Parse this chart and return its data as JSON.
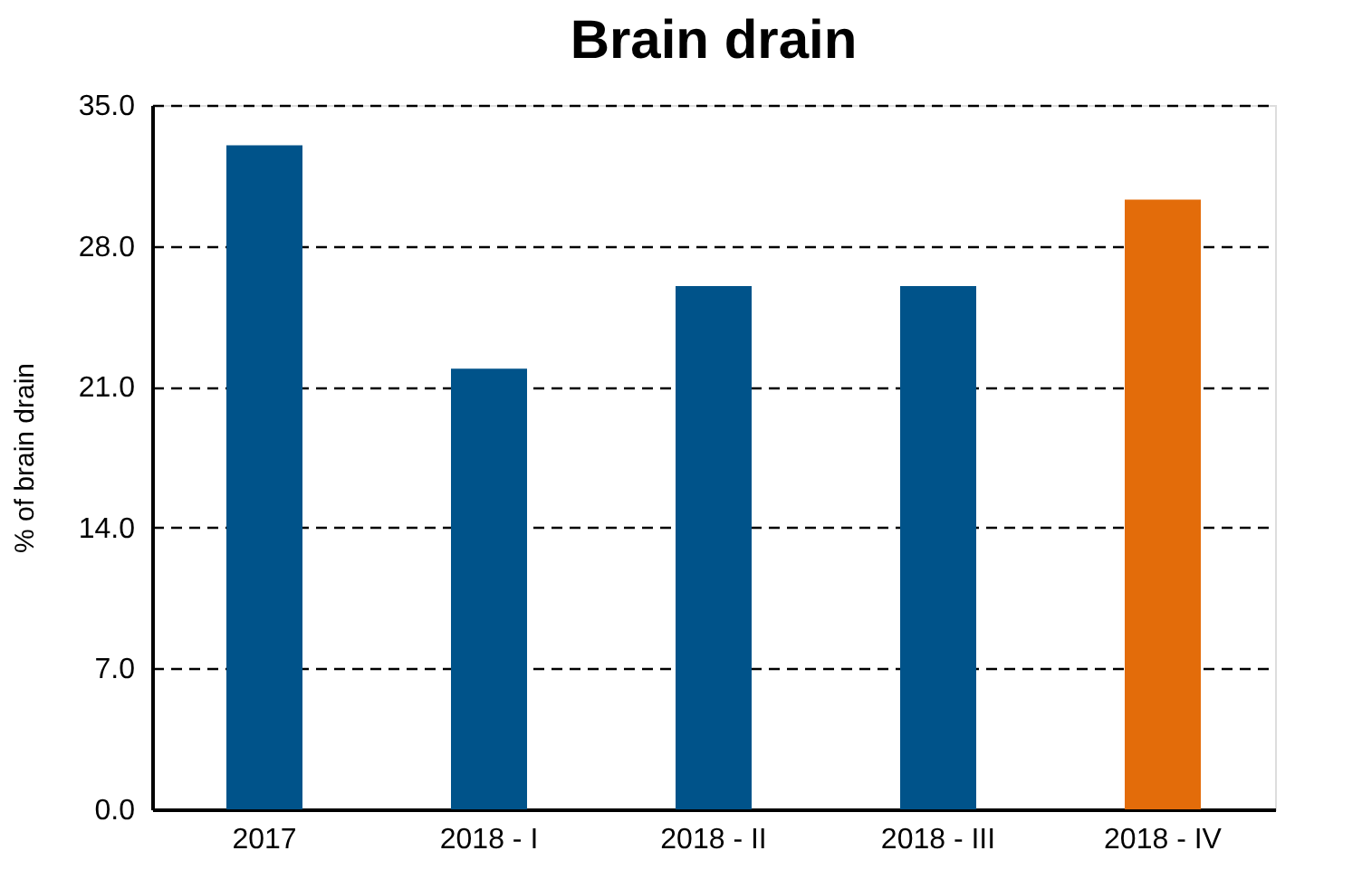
{
  "chart_data": {
    "type": "bar",
    "title": "Brain drain",
    "ylabel": "% of brain drain",
    "categories": [
      "2017",
      "2018 - I",
      "2018 - II",
      "2018 - III",
      "2018 - IV"
    ],
    "values": [
      33.0,
      21.9,
      26.0,
      26.0,
      30.3
    ],
    "colors": [
      "#00538a",
      "#00538a",
      "#00538a",
      "#00538a",
      "#e36c0a"
    ],
    "ylim": [
      0,
      35
    ],
    "yticks": [
      {
        "value": 0,
        "label": "0.0"
      },
      {
        "value": 7,
        "label": "7.0"
      },
      {
        "value": 14,
        "label": "14.0"
      },
      {
        "value": 21,
        "label": "21.0"
      },
      {
        "value": 28,
        "label": "28.0"
      },
      {
        "value": 35,
        "label": "35.0"
      }
    ],
    "grid": "y"
  }
}
